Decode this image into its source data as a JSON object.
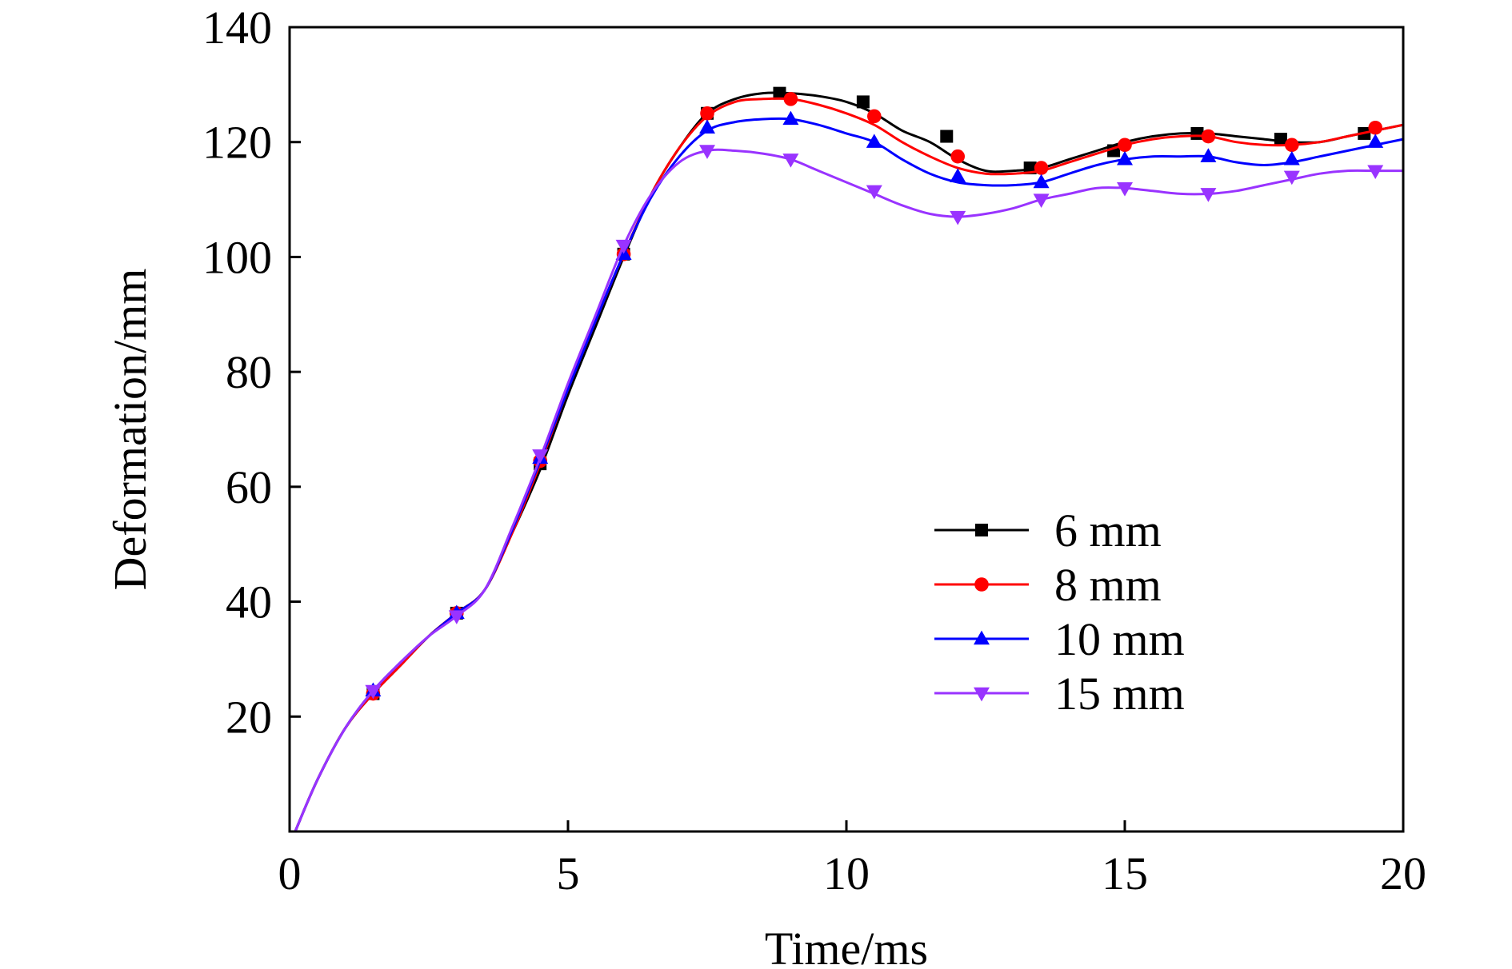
{
  "chart_data": {
    "type": "line",
    "title": "",
    "xlabel": "Time/ms",
    "ylabel": "Deformation/mm",
    "xlim": [
      0,
      20
    ],
    "ylim": [
      0,
      140
    ],
    "xticks": [
      0,
      5,
      10,
      15,
      20
    ],
    "yticks": [
      20,
      40,
      60,
      80,
      100,
      120,
      140
    ],
    "grid": false,
    "legend_position": "lower-right",
    "series": [
      {
        "name": "6 mm",
        "color": "#000000",
        "marker": "square",
        "x": [
          0.1,
          0.5,
          1.0,
          1.5,
          2.0,
          2.5,
          3.0,
          3.5,
          4.0,
          4.5,
          5.0,
          5.5,
          6.0,
          6.5,
          7.0,
          7.5,
          8.0,
          8.5,
          9.0,
          9.5,
          10.0,
          10.5,
          11.0,
          11.5,
          12.0,
          12.5,
          13.0,
          13.5,
          14.0,
          14.5,
          15.0,
          15.5,
          16.0,
          16.5,
          17.0,
          17.5,
          18.0,
          18.5,
          19.0,
          19.5,
          20.0
        ],
        "y": [
          0,
          9,
          18,
          24,
          29,
          34,
          38,
          42,
          52,
          63,
          76,
          88,
          100,
          111,
          119,
          125,
          127.5,
          128.5,
          128.5,
          128,
          127,
          125,
          122,
          120,
          117,
          115,
          115,
          115.5,
          117,
          118.5,
          120,
          121,
          121.5,
          121.5,
          121,
          120.5,
          120,
          120,
          121,
          122,
          123
        ],
        "marker_x": [
          1.5,
          3.0,
          4.5,
          6.0,
          7.5,
          8.8,
          10.3,
          11.8,
          13.3,
          14.8,
          16.3,
          17.8,
          19.3
        ],
        "marker_y": [
          24,
          38,
          64,
          100.5,
          125,
          128.5,
          127,
          121,
          115.5,
          118.5,
          121.5,
          120.5,
          121.5
        ]
      },
      {
        "name": "8 mm",
        "color": "#ff0000",
        "marker": "circle",
        "x": [
          0.1,
          0.5,
          1.0,
          1.5,
          2.0,
          2.5,
          3.0,
          3.5,
          4.0,
          4.5,
          5.0,
          5.5,
          6.0,
          6.5,
          7.0,
          7.5,
          8.0,
          8.5,
          9.0,
          9.5,
          10.0,
          10.5,
          11.0,
          11.5,
          12.0,
          12.5,
          13.0,
          13.5,
          14.0,
          14.5,
          15.0,
          15.5,
          16.0,
          16.5,
          17.0,
          17.5,
          18.0,
          18.5,
          19.0,
          19.5,
          20.0
        ],
        "y": [
          0,
          9,
          18,
          24,
          29,
          34,
          38,
          42,
          52,
          64,
          77,
          89,
          100.5,
          111,
          119,
          124.5,
          127,
          127.5,
          127.5,
          126.5,
          125,
          123,
          120,
          117.5,
          115.5,
          114.5,
          114.5,
          115,
          116.5,
          118,
          119.5,
          120.5,
          121,
          121,
          120,
          119.5,
          119.5,
          120,
          121,
          122,
          123
        ],
        "marker_x": [
          1.5,
          3.0,
          4.5,
          6.0,
          7.5,
          9.0,
          10.5,
          12.0,
          13.5,
          15.0,
          16.5,
          18.0,
          19.5
        ],
        "marker_y": [
          24,
          38,
          64.5,
          100.5,
          125,
          127.5,
          124.5,
          117.5,
          115.5,
          119.5,
          121,
          119.5,
          122.5
        ]
      },
      {
        "name": "10 mm",
        "color": "#0000ff",
        "marker": "triangle-up",
        "x": [
          0.1,
          0.5,
          1.0,
          1.5,
          2.0,
          2.5,
          3.0,
          3.5,
          4.0,
          4.5,
          5.0,
          5.5,
          6.0,
          6.5,
          7.0,
          7.5,
          8.0,
          8.5,
          9.0,
          9.5,
          10.0,
          10.5,
          11.0,
          11.5,
          12.0,
          12.5,
          13.0,
          13.5,
          14.0,
          14.5,
          15.0,
          15.5,
          16.0,
          16.5,
          17.0,
          17.5,
          18.0,
          18.5,
          19.0,
          19.5,
          20.0
        ],
        "y": [
          0,
          9,
          18,
          24.5,
          29.5,
          34,
          38,
          42,
          52.5,
          64.5,
          77,
          89,
          100.5,
          110.5,
          117.5,
          122,
          123.5,
          124,
          124,
          123,
          121.5,
          120,
          117,
          114.5,
          113,
          112.5,
          112.5,
          113,
          114.5,
          116,
          117,
          117.5,
          117.5,
          117.5,
          116.5,
          116,
          116.5,
          117.5,
          118.5,
          119.5,
          120.5
        ],
        "marker_x": [
          1.5,
          3.0,
          4.5,
          6.0,
          7.5,
          9.0,
          10.5,
          12.0,
          13.5,
          15.0,
          16.5,
          18.0,
          19.5
        ],
        "marker_y": [
          24.5,
          38,
          65,
          100.5,
          122.5,
          124,
          120,
          114,
          113,
          117,
          117.5,
          117,
          120
        ]
      },
      {
        "name": "15 mm",
        "color": "#9933ff",
        "marker": "triangle-down",
        "x": [
          0.1,
          0.5,
          1.0,
          1.5,
          2.0,
          2.5,
          3.0,
          3.5,
          4.0,
          4.5,
          5.0,
          5.5,
          6.0,
          6.5,
          7.0,
          7.5,
          8.0,
          8.5,
          9.0,
          9.5,
          10.0,
          10.5,
          11.0,
          11.5,
          12.0,
          12.5,
          13.0,
          13.5,
          14.0,
          14.5,
          15.0,
          15.5,
          16.0,
          16.5,
          17.0,
          17.5,
          18.0,
          18.5,
          19.0,
          19.5,
          20.0
        ],
        "y": [
          0,
          9,
          18,
          24.5,
          29.5,
          34,
          37.5,
          42,
          53,
          65,
          78,
          90,
          102,
          111,
          116.5,
          118.5,
          118.5,
          118,
          117,
          115,
          113,
          111,
          109,
          107.5,
          107,
          107.5,
          108.5,
          110,
          111,
          112,
          112,
          111.5,
          111,
          111,
          111.5,
          112.5,
          113.5,
          114.5,
          115,
          115,
          115
        ],
        "marker_x": [
          1.5,
          3.0,
          4.5,
          6.0,
          7.5,
          9.0,
          10.5,
          12.0,
          13.5,
          15.0,
          16.5,
          18.0,
          19.5
        ],
        "marker_y": [
          24.5,
          37.5,
          65.5,
          102,
          118.5,
          117,
          111.5,
          107,
          110,
          112,
          111,
          114,
          115
        ]
      }
    ]
  }
}
